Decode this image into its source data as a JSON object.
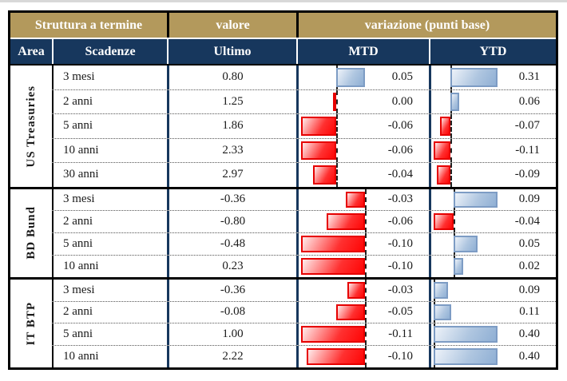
{
  "header": {
    "struttura": "Struttura a termine",
    "valore": "valore",
    "variazione": "variazione (punti base)",
    "area": "Area",
    "scadenze": "Scadenze",
    "ultimo": "Ultimo",
    "mtd": "MTD",
    "ytd": "YTD"
  },
  "colors": {
    "header_gold": "#B3995C",
    "header_navy": "#17375D",
    "negative_bar": "#FF0000",
    "negative_border": "#E60000",
    "positive_bar": "#8FAFD4",
    "positive_border": "#7D9CC4",
    "grid_black": "#000000"
  },
  "chart_data": {
    "type": "table",
    "title": "Struttura a termine",
    "columns": [
      "Area",
      "Scadenze",
      "Ultimo",
      "MTD",
      "YTD"
    ],
    "units": "variazione in punti base; Ultimo in %",
    "bar_style": "horizontal data bars per area-group, auto-scaled axis per group/column, red = negative or zero, blue = positive, dashed zero axis",
    "groups": [
      {
        "area": "US Treasuries",
        "rows": [
          {
            "scadenza": "3 mesi",
            "ultimo": 0.8,
            "mtd": 0.05,
            "ytd": 0.31
          },
          {
            "scadenza": "2 anni",
            "ultimo": 1.25,
            "mtd": 0.0,
            "ytd": 0.06
          },
          {
            "scadenza": "5 anni",
            "ultimo": 1.86,
            "mtd": -0.06,
            "ytd": -0.07
          },
          {
            "scadenza": "10 anni",
            "ultimo": 2.33,
            "mtd": -0.06,
            "ytd": -0.11
          },
          {
            "scadenza": "30 anni",
            "ultimo": 2.97,
            "mtd": -0.04,
            "ytd": -0.09
          }
        ]
      },
      {
        "area": "BD Bund",
        "rows": [
          {
            "scadenza": "3 mesi",
            "ultimo": -0.36,
            "mtd": -0.03,
            "ytd": 0.09
          },
          {
            "scadenza": "2 anni",
            "ultimo": -0.8,
            "mtd": -0.06,
            "ytd": -0.04
          },
          {
            "scadenza": "5 anni",
            "ultimo": -0.48,
            "mtd": -0.1,
            "ytd": 0.05
          },
          {
            "scadenza": "10 anni",
            "ultimo": 0.23,
            "mtd": -0.1,
            "ytd": 0.02
          }
        ]
      },
      {
        "area": "IT BTP",
        "rows": [
          {
            "scadenza": "3 mesi",
            "ultimo": -0.36,
            "mtd": -0.03,
            "ytd": 0.09
          },
          {
            "scadenza": "2 anni",
            "ultimo": -0.08,
            "mtd": -0.05,
            "ytd": 0.11
          },
          {
            "scadenza": "5 anni",
            "ultimo": 1.0,
            "mtd": -0.11,
            "ytd": 0.4
          },
          {
            "scadenza": "10 anni",
            "ultimo": 2.22,
            "mtd": -0.1,
            "ytd": 0.4
          }
        ]
      }
    ]
  }
}
